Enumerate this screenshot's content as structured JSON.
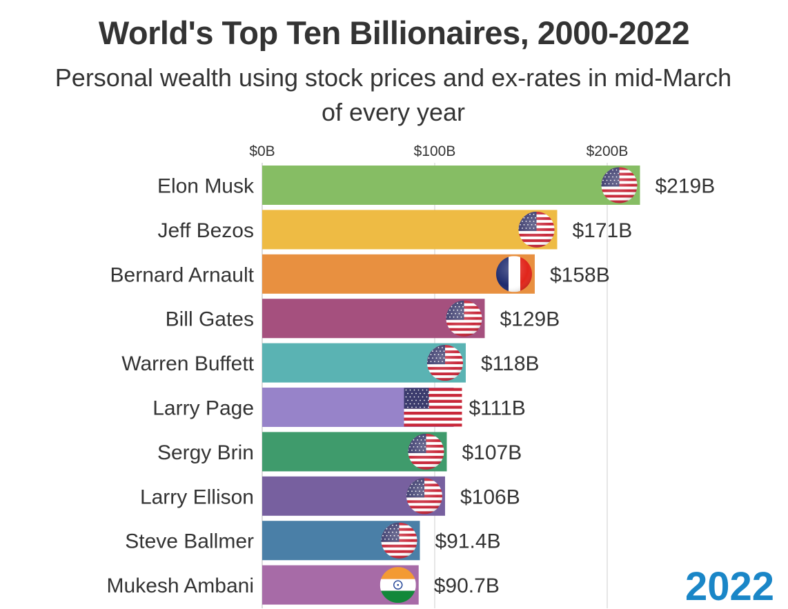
{
  "title": "World's Top Ten Billionaires, 2000-2022",
  "subtitle": "Personal wealth using stock prices and ex-rates in mid-March of every year",
  "year": "2022",
  "chart_data": {
    "type": "bar",
    "orientation": "horizontal",
    "title": "World's Top Ten Billionaires, 2000-2022",
    "subtitle": "Personal wealth using stock prices and ex-rates in mid-March of every year",
    "xlabel": "",
    "ylabel": "",
    "xlim": [
      0,
      218
    ],
    "ticks": [
      {
        "value": 0,
        "label": "$0B"
      },
      {
        "value": 100,
        "label": "$100B"
      },
      {
        "value": 200,
        "label": "$200B"
      }
    ],
    "grid": true,
    "categories": [
      "Elon Musk",
      "Jeff Bezos",
      "Bernard Arnault",
      "Bill Gates",
      "Warren Buffett",
      "Larry Page",
      "Sergy Brin",
      "Larry Ellison",
      "Steve Ballmer",
      "Mukesh Ambani"
    ],
    "values": [
      219,
      171,
      158,
      129,
      118,
      111,
      107,
      106,
      91.4,
      90.7
    ],
    "value_labels": [
      "$219B",
      "$171B",
      "$158B",
      "$129B",
      "$118B",
      "$111B",
      "$107B",
      "$106B",
      "$91.4B",
      "$90.7B"
    ],
    "colors": [
      "#86bd64",
      "#eebb44",
      "#e89040",
      "#a5507e",
      "#5ab3b3",
      "#9783c9",
      "#3f9b6c",
      "#77609f",
      "#4a7fa7",
      "#a76ba7"
    ],
    "flags": [
      "us-flag-icon",
      "us-flag-icon",
      "fr-flag-icon",
      "us-flag-icon",
      "us-flag-icon",
      "us-flag-icon",
      "us-flag-icon",
      "us-flag-icon",
      "us-flag-icon",
      "in-flag-icon"
    ]
  }
}
